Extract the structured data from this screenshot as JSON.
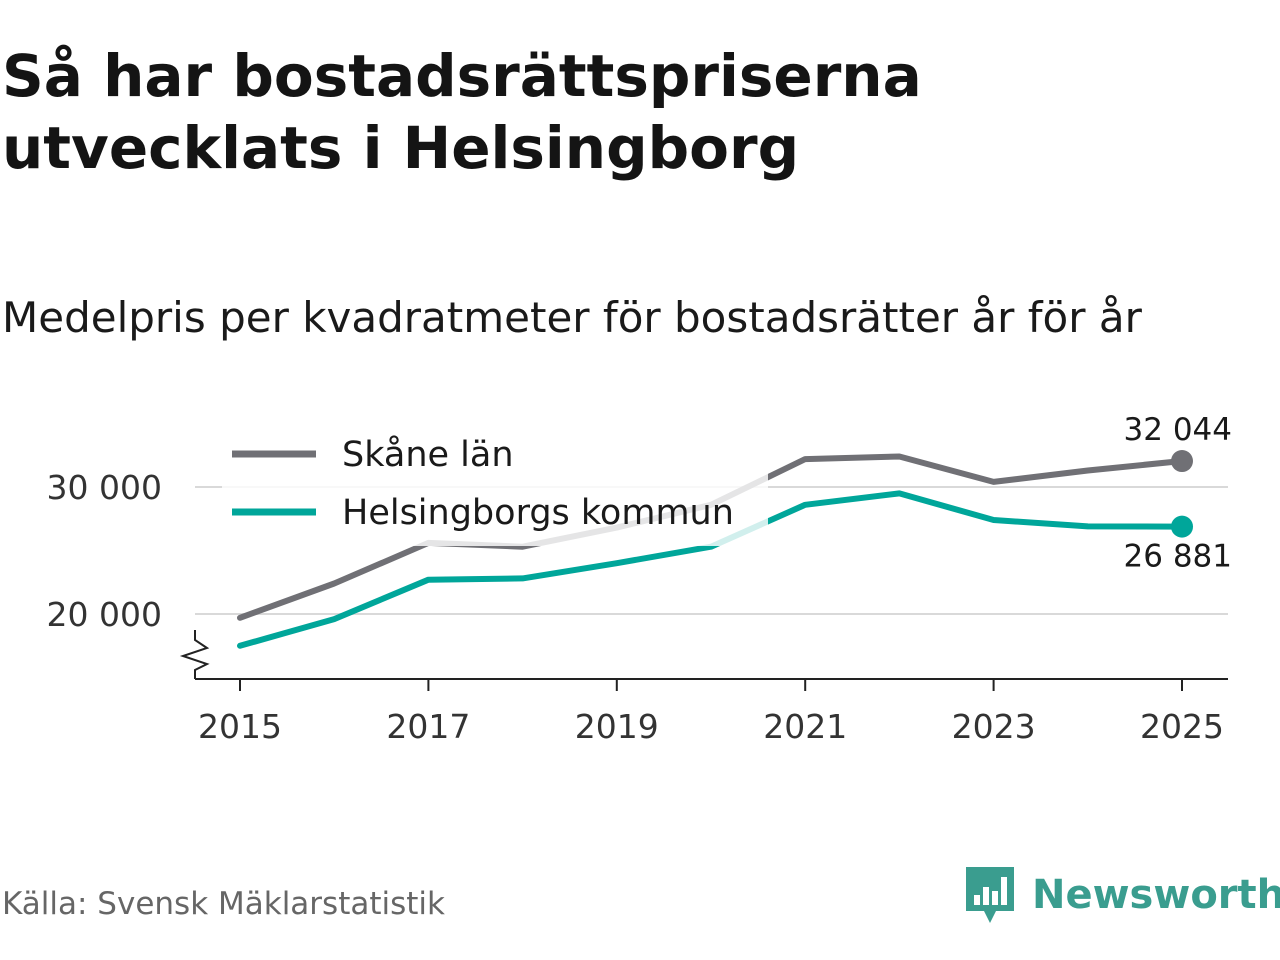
{
  "title": "Så har bostadsrättspriserna utvecklats i Helsingborg",
  "subtitle": "Medelpris per kvadratmeter för bostadsrätter år för år",
  "source": "Källa: Svensk Mäklarstatistik",
  "brand": {
    "name": "Newsworthy",
    "icon": "newsworthy-bar-chart-icon",
    "color": "#3a9d8f"
  },
  "chart_data": {
    "type": "line",
    "x": [
      2015,
      2016,
      2017,
      2018,
      2019,
      2020,
      2021,
      2022,
      2023,
      2024,
      2025
    ],
    "xticks": [
      2015,
      2017,
      2019,
      2021,
      2023,
      2025
    ],
    "xtick_labels": [
      "2015",
      "2017",
      "2019",
      "2021",
      "2023",
      "2025"
    ],
    "yticks": [
      20000,
      30000
    ],
    "ytick_labels": [
      "20 000",
      "30 000"
    ],
    "ylim": [
      15000,
      35000
    ],
    "grid": true,
    "axis_break": true,
    "legend_position": "top-left",
    "series": [
      {
        "name": "Skåne län",
        "color": "#707075",
        "values": [
          19700,
          22400,
          25600,
          25300,
          26800,
          28600,
          32200,
          32400,
          30400,
          31300,
          32044
        ],
        "end_label": "32 044",
        "end_label_position": "above"
      },
      {
        "name": "Helsingborgs kommun",
        "color": "#00a69a",
        "values": [
          17500,
          19600,
          22700,
          22800,
          24000,
          25300,
          28600,
          29500,
          27400,
          26900,
          26881
        ],
        "end_label": "26 881",
        "end_label_position": "below"
      }
    ]
  }
}
